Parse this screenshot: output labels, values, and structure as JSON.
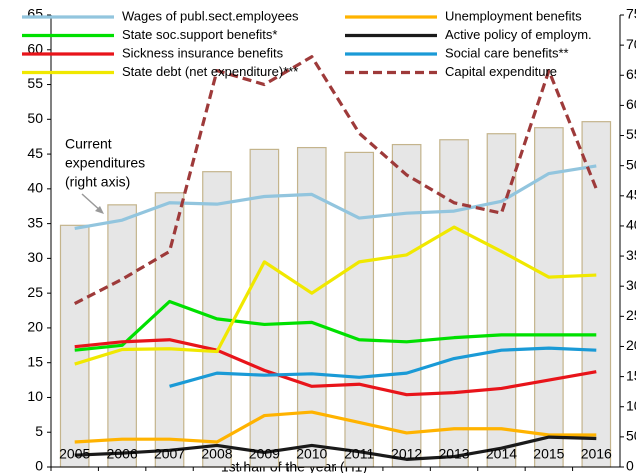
{
  "chart_data": {
    "type": "bar-line",
    "x_label": "1st half of the year (H1)",
    "annotation": [
      "Current",
      "expenditures",
      "(right axis)"
    ],
    "categories": [
      "2005",
      "2006",
      "2007",
      "2008",
      "2009",
      "2010",
      "2011",
      "2012",
      "2013",
      "2014",
      "2015",
      "2016"
    ],
    "ylim": [
      0,
      65
    ],
    "yticks": [
      0,
      5,
      10,
      15,
      20,
      25,
      30,
      35,
      40,
      45,
      50,
      55,
      60,
      65
    ],
    "y2lim": [
      0,
      750
    ],
    "y2ticks": [
      0,
      50,
      100,
      150,
      200,
      250,
      300,
      350,
      400,
      450,
      500,
      550,
      600,
      650,
      700,
      750
    ],
    "series": [
      {
        "name": "Current expenditures",
        "type": "bar",
        "axis": "y2",
        "color": "#e6e6e6",
        "edge_color": "#c4b48c",
        "values": [
          401,
          435,
          455,
          490,
          527,
          530,
          522,
          535,
          543,
          553,
          563,
          573
        ]
      },
      {
        "name": "Wages of publ.sect.employees",
        "type": "line",
        "color": "#92c5de",
        "values": [
          34.3,
          35.5,
          38,
          37.8,
          38.9,
          39.2,
          35.8,
          36.5,
          36.8,
          38.2,
          42.2,
          43.3
        ]
      },
      {
        "name": "State soc.support benefits*",
        "type": "line",
        "color": "#00e000",
        "values": [
          16.8,
          17.5,
          23.8,
          21.3,
          20.5,
          20.8,
          18.3,
          18,
          18.6,
          19,
          19,
          19
        ]
      },
      {
        "name": "Sickness insurance benefits",
        "type": "line",
        "color": "#e8141a",
        "values": [
          17.3,
          18,
          18.3,
          16.8,
          13.9,
          11.6,
          11.9,
          10.4,
          10.7,
          11.3,
          12.5,
          13.7
        ]
      },
      {
        "name": "State debt (net expenditure)***",
        "type": "line",
        "color": "#f0e800",
        "values": [
          14.8,
          16.9,
          17,
          16.6,
          29.5,
          25,
          29.5,
          30.5,
          34.5,
          31,
          27.3,
          27.6
        ]
      },
      {
        "name": "Unemployment benefits",
        "type": "line",
        "color": "#ffb300",
        "values": [
          3.6,
          4,
          4,
          3.6,
          7.4,
          7.9,
          6.4,
          4.9,
          5.5,
          5.5,
          4.6,
          4.6
        ]
      },
      {
        "name": "Active policy of employm.",
        "type": "line",
        "color": "#1a1a1a",
        "values": [
          1.7,
          2,
          2.4,
          3.1,
          2.1,
          3.1,
          2.2,
          1.1,
          1.5,
          2.7,
          4.3,
          4.1
        ]
      },
      {
        "name": "Social care benefits**",
        "type": "line",
        "color": "#1a9ad6",
        "values": [
          null,
          null,
          11.6,
          13.5,
          13.2,
          13.4,
          12.9,
          13.5,
          15.6,
          16.8,
          17.1,
          16.8
        ]
      },
      {
        "name": "Capital expenditure",
        "type": "line",
        "style": "dashed",
        "color": "#9e3a3a",
        "values": [
          23.5,
          27,
          31,
          57,
          55,
          59,
          48,
          42,
          38,
          36.5,
          57,
          40
        ]
      }
    ]
  }
}
